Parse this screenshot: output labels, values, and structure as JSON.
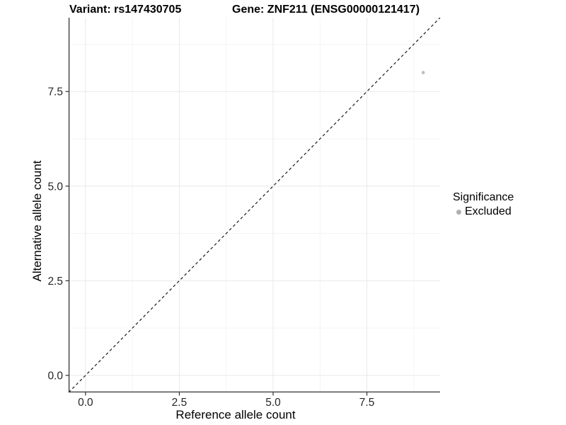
{
  "header": {
    "variant_title": "Variant: rs147430705",
    "gene_title": "Gene: ZNF211 (ENSG00000121417)"
  },
  "chart_data": {
    "type": "scatter",
    "xlabel": "Reference allele count",
    "ylabel": "Alternative allele count",
    "xlim": [
      -0.45,
      9.45
    ],
    "ylim": [
      -0.45,
      9.45
    ],
    "x_ticks": [
      0,
      2.5,
      5,
      7.5
    ],
    "y_ticks": [
      0,
      2.5,
      5,
      7.5
    ],
    "x_tick_labels": [
      "0.0",
      "2.5",
      "5.0",
      "7.5"
    ],
    "y_tick_labels": [
      "0.0",
      "2.5",
      "5.0",
      "7.5"
    ],
    "minor_gridlines": [
      1.25,
      3.75,
      6.25,
      8.75
    ],
    "grid": true,
    "identity_line": {
      "slope": 1,
      "intercept": 0,
      "style": "dashed",
      "color": "#1a1a1a"
    },
    "series": [
      {
        "name": "Excluded",
        "color": "#bdbdbd",
        "points": [
          {
            "x": 9,
            "y": 8
          }
        ]
      }
    ],
    "legend": {
      "position": "right",
      "title": "Significance",
      "items": [
        {
          "label": "Excluded",
          "color": "#b0b0b0"
        }
      ]
    },
    "colors": {
      "major_grid": "#e8e8e8",
      "minor_grid": "#f3f3f3",
      "axis_line": "#333333",
      "tick_mark": "#333333",
      "point": "#bdbdbd"
    }
  }
}
